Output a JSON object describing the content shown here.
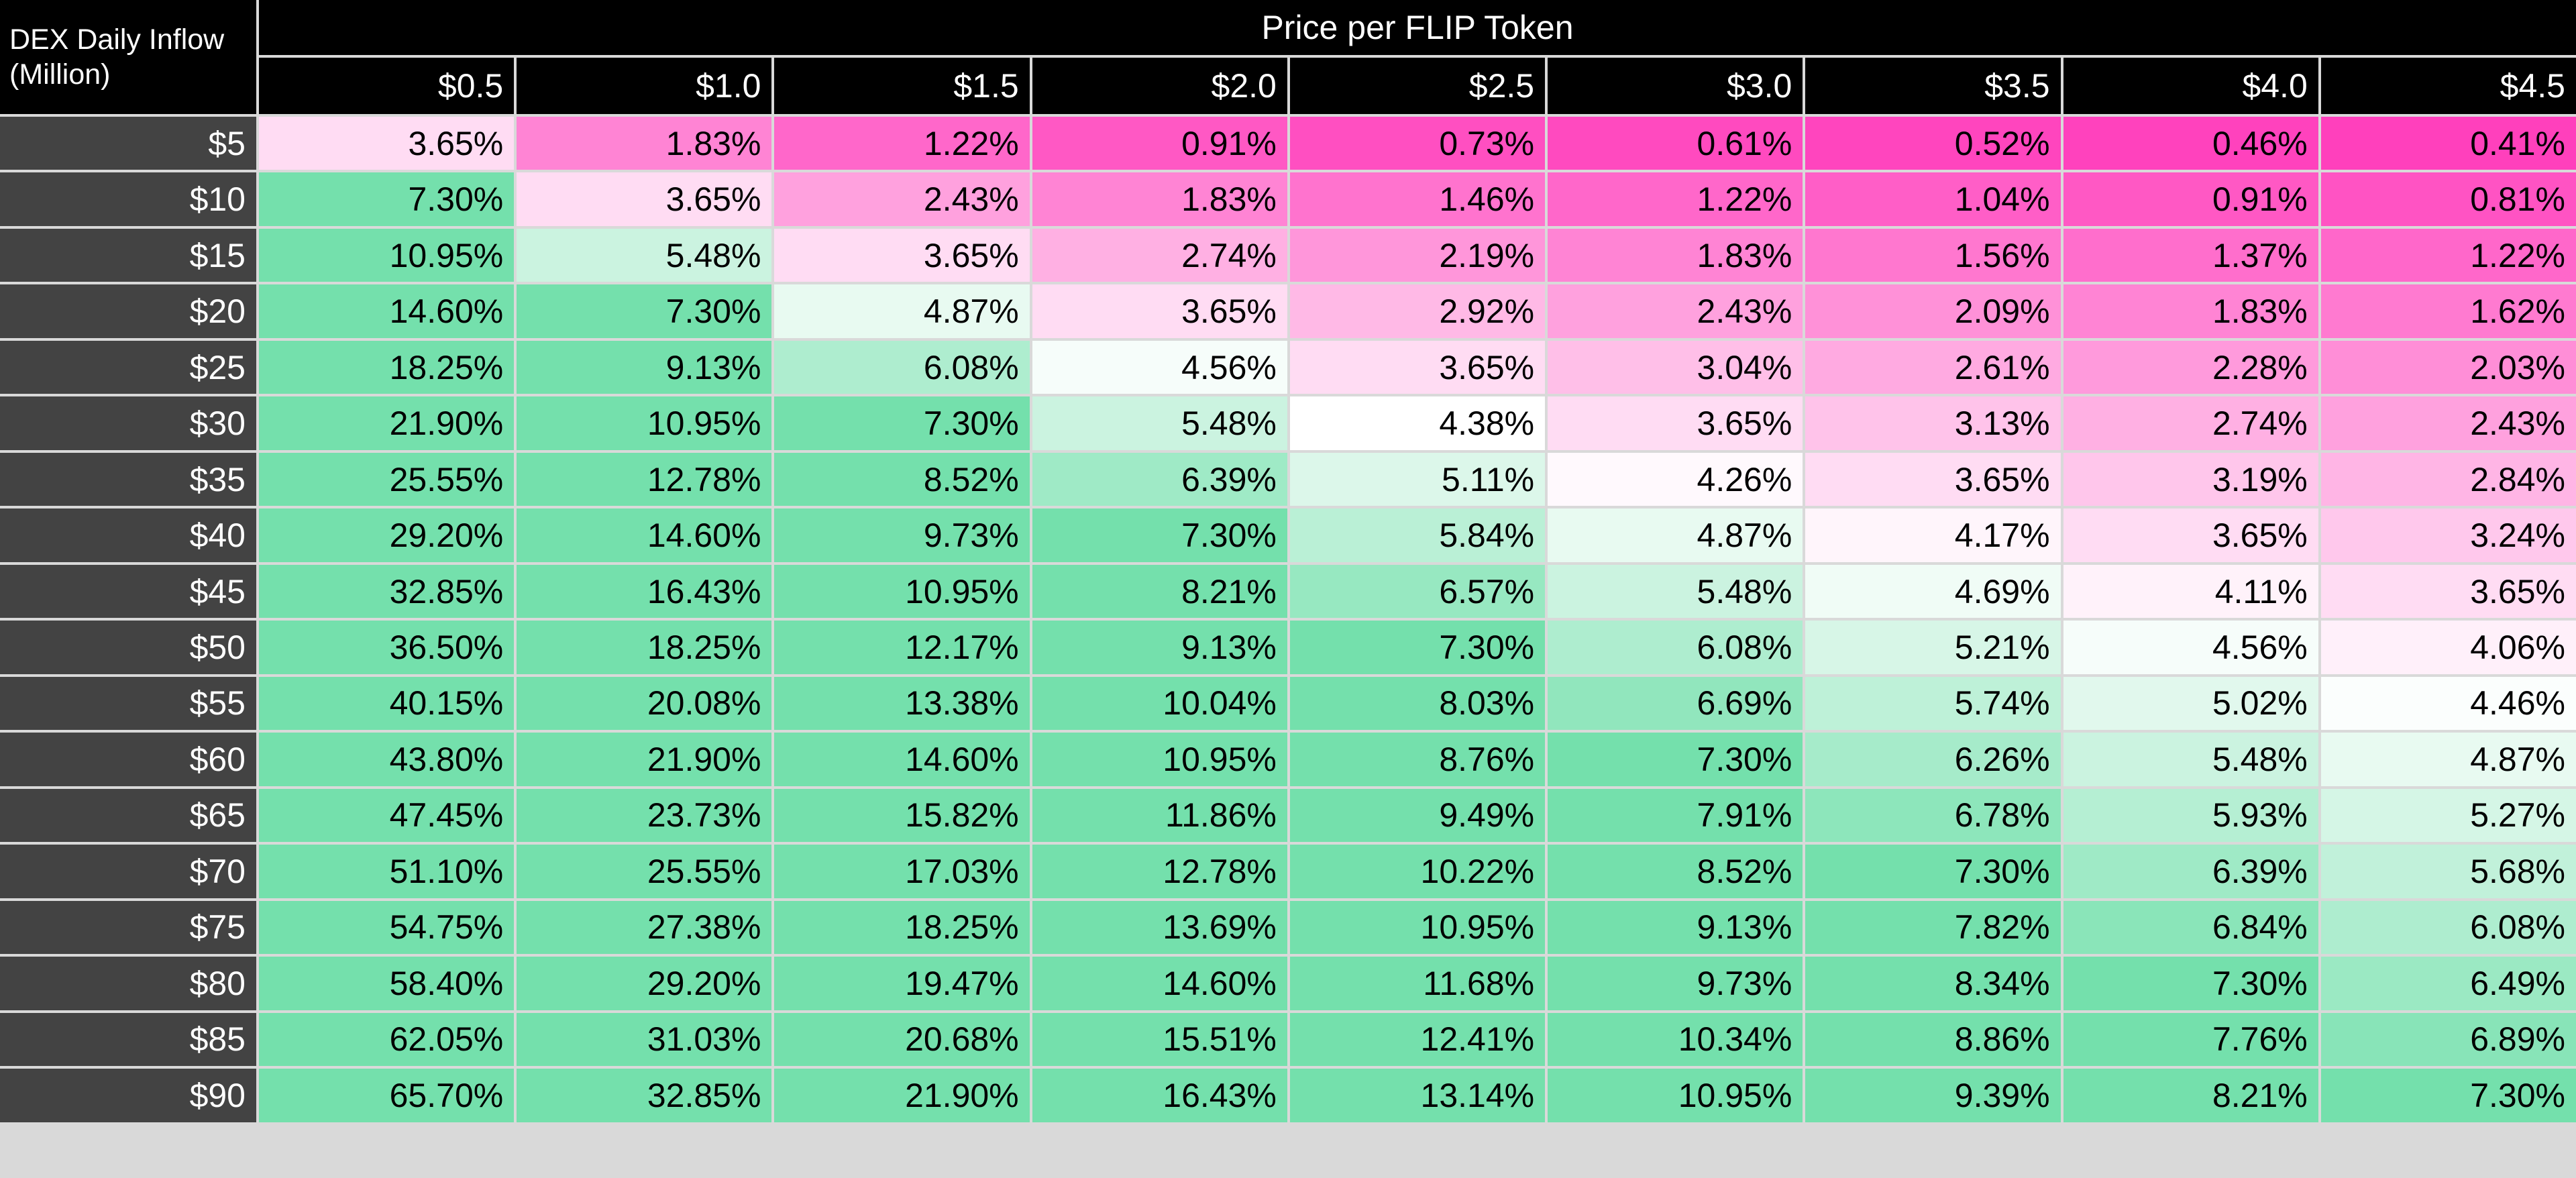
{
  "table": {
    "corner_label_line1": "DEX Daily Inflow",
    "corner_label_line2": "(Million)",
    "title": "Price per FLIP Token",
    "col_headers": [
      "$0.5",
      "$1.0",
      "$1.5",
      "$2.0",
      "$2.5",
      "$3.0",
      "$3.5",
      "$4.0",
      "$4.5"
    ],
    "row_headers": [
      "$5",
      "$10",
      "$15",
      "$20",
      "$25",
      "$30",
      "$35",
      "$40",
      "$45",
      "$50",
      "$55",
      "$60",
      "$65",
      "$70",
      "$75",
      "$80",
      "$85",
      "$90"
    ]
  },
  "chart_data": {
    "type": "heatmap",
    "title": "Price per FLIP Token",
    "xlabel": "Price per FLIP Token",
    "ylabel": "DEX Daily Inflow (Million)",
    "x": [
      0.5,
      1.0,
      1.5,
      2.0,
      2.5,
      3.0,
      3.5,
      4.0,
      4.5
    ],
    "y": [
      5,
      10,
      15,
      20,
      25,
      30,
      35,
      40,
      45,
      50,
      55,
      60,
      65,
      70,
      75,
      80,
      85,
      90
    ],
    "value_unit": "%",
    "values": [
      [
        3.65,
        1.83,
        1.22,
        0.91,
        0.73,
        0.61,
        0.52,
        0.46,
        0.41
      ],
      [
        7.3,
        3.65,
        2.43,
        1.83,
        1.46,
        1.22,
        1.04,
        0.91,
        0.81
      ],
      [
        10.95,
        5.48,
        3.65,
        2.74,
        2.19,
        1.83,
        1.56,
        1.37,
        1.22
      ],
      [
        14.6,
        7.3,
        4.87,
        3.65,
        2.92,
        2.43,
        2.09,
        1.83,
        1.62
      ],
      [
        18.25,
        9.13,
        6.08,
        4.56,
        3.65,
        3.04,
        2.61,
        2.28,
        2.03
      ],
      [
        21.9,
        10.95,
        7.3,
        5.48,
        4.38,
        3.65,
        3.13,
        2.74,
        2.43
      ],
      [
        25.55,
        12.78,
        8.52,
        6.39,
        5.11,
        4.26,
        3.65,
        3.19,
        2.84
      ],
      [
        29.2,
        14.6,
        9.73,
        7.3,
        5.84,
        4.87,
        4.17,
        3.65,
        3.24
      ],
      [
        32.85,
        16.43,
        10.95,
        8.21,
        6.57,
        5.48,
        4.69,
        4.11,
        3.65
      ],
      [
        36.5,
        18.25,
        12.17,
        9.13,
        7.3,
        6.08,
        5.21,
        4.56,
        4.06
      ],
      [
        40.15,
        20.08,
        13.38,
        10.04,
        8.03,
        6.69,
        5.74,
        5.02,
        4.46
      ],
      [
        43.8,
        21.9,
        14.6,
        10.95,
        8.76,
        7.3,
        6.26,
        5.48,
        4.87
      ],
      [
        47.45,
        23.73,
        15.82,
        11.86,
        9.49,
        7.91,
        6.78,
        5.93,
        5.27
      ],
      [
        51.1,
        25.55,
        17.03,
        12.78,
        10.22,
        8.52,
        7.3,
        6.39,
        5.68
      ],
      [
        54.75,
        27.38,
        18.25,
        13.69,
        10.95,
        9.13,
        7.82,
        6.84,
        6.08
      ],
      [
        58.4,
        29.2,
        19.47,
        14.6,
        11.68,
        9.73,
        8.34,
        7.3,
        6.49
      ],
      [
        62.05,
        31.03,
        20.68,
        15.51,
        12.41,
        10.34,
        8.86,
        7.76,
        6.89
      ],
      [
        65.7,
        32.85,
        21.9,
        16.43,
        13.14,
        10.95,
        9.39,
        8.21,
        7.3
      ]
    ],
    "color_scale": {
      "low_color": "#FF40BC",
      "mid_color": "#FFFFFF",
      "high_color": "#74E0AC",
      "min": 0.41,
      "mid": 4.38,
      "max": 7.3
    },
    "layout": {
      "header_bg": "#000000",
      "row_header_bg": "#434343",
      "gridline_color": "#D9D9D9",
      "header_text_color": "#FFFFFF",
      "cell_text_color": "#000000",
      "legend": "off",
      "grid": "on"
    }
  }
}
